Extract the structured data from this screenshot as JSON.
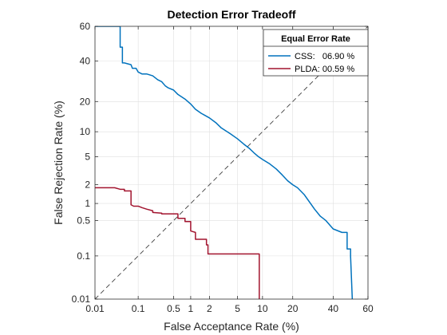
{
  "chart_data": {
    "type": "line",
    "title": "Detection Error Tradeoff",
    "xlabel": "False Acceptance Rate (%)",
    "ylabel": "False Rejection Rate (%)",
    "scale": "normal-deviate (probit) on both axes",
    "xlim": [
      0.01,
      60
    ],
    "ylim": [
      0.01,
      60
    ],
    "xticks": [
      0.01,
      0.1,
      0.5,
      1,
      2,
      5,
      10,
      20,
      40,
      60
    ],
    "xtick_labels": [
      "0.01",
      "0.1",
      "0.5",
      "1",
      "2",
      "5",
      "10",
      "20",
      "40",
      "60"
    ],
    "yticks": [
      0.01,
      0.1,
      0.5,
      1,
      2,
      5,
      10,
      20,
      40,
      60
    ],
    "ytick_labels": [
      "0.01",
      "0.1",
      "0.5",
      "1",
      "2",
      "5",
      "10",
      "20",
      "40",
      "60"
    ],
    "grid": true,
    "box": true,
    "legend": {
      "title": "Equal Error Rate",
      "location": "top-right",
      "entries": [
        "CSS:   06.90 %",
        "PLDA: 00.59 %"
      ]
    },
    "reference_line": {
      "name": "EER diagonal",
      "x": [
        0.01,
        60
      ],
      "y": [
        0.01,
        60
      ],
      "style": "dashed",
      "color": "#404040"
    },
    "series": [
      {
        "name": "CSS",
        "color": "#0072BD",
        "x": [
          0.01,
          0.04,
          0.04,
          0.045,
          0.045,
          0.05,
          0.07,
          0.075,
          0.09,
          0.1,
          0.12,
          0.15,
          0.2,
          0.25,
          0.3,
          0.35,
          0.4,
          0.5,
          0.6,
          0.8,
          1.0,
          1.2,
          1.5,
          2.0,
          2.5,
          3.0,
          4.0,
          5.0,
          6.0,
          7.0,
          8.0,
          9.0,
          10.0,
          12.0,
          14.0,
          16.0,
          18.0,
          20.0,
          22.0,
          25.0,
          28.0,
          30.0,
          33.0,
          36.0,
          40.0,
          45.0,
          48.0,
          48.0,
          50.0,
          50.0,
          51.0
        ],
        "y": [
          60,
          60,
          48,
          48,
          39,
          39,
          38,
          36,
          36,
          34,
          33,
          33,
          32,
          30,
          29,
          27,
          26,
          25,
          23,
          21,
          19,
          17,
          15.5,
          14,
          12.5,
          11,
          9.5,
          8.3,
          7.2,
          6.4,
          5.6,
          5.0,
          4.6,
          4.0,
          3.4,
          2.8,
          2.3,
          2.0,
          1.8,
          1.4,
          1.0,
          0.8,
          0.6,
          0.5,
          0.35,
          0.3,
          0.3,
          0.14,
          0.14,
          0.1,
          0.01
        ]
      },
      {
        "name": "PLDA",
        "color": "#A2142F",
        "x": [
          0.01,
          0.03,
          0.04,
          0.05,
          0.05,
          0.07,
          0.07,
          0.08,
          0.1,
          0.12,
          0.15,
          0.2,
          0.2,
          0.3,
          0.3,
          0.6,
          0.6,
          0.8,
          0.8,
          1.0,
          1.0,
          1.2,
          1.2,
          1.8,
          1.8,
          1.9,
          1.9,
          8.3,
          8.3,
          9.2,
          9.2
        ],
        "y": [
          1.8,
          1.8,
          1.7,
          1.7,
          1.6,
          1.6,
          0.95,
          0.9,
          0.9,
          0.85,
          0.8,
          0.75,
          0.7,
          0.68,
          0.66,
          0.66,
          0.55,
          0.55,
          0.48,
          0.48,
          0.32,
          0.3,
          0.22,
          0.22,
          0.17,
          0.17,
          0.11,
          0.11,
          0.11,
          0.11,
          0.01
        ]
      }
    ]
  }
}
